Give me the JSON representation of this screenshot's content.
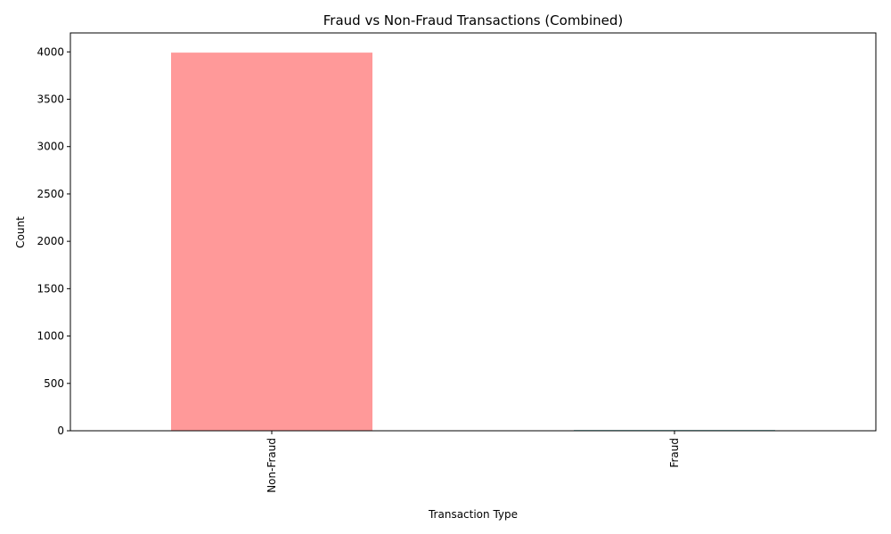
{
  "chart_data": {
    "type": "bar",
    "title": "Fraud vs Non-Fraud Transactions (Combined)",
    "xlabel": "Transaction Type",
    "ylabel": "Count",
    "categories": [
      "Non-Fraud",
      "Fraud"
    ],
    "values": [
      3992,
      8
    ],
    "colors": [
      "#ff9999",
      "#66b3b3"
    ],
    "ylim": [
      0,
      4200
    ],
    "yticks": [
      0,
      500,
      1000,
      1500,
      2000,
      2500,
      3000,
      3500,
      4000
    ],
    "grid": false,
    "legend": "none"
  }
}
